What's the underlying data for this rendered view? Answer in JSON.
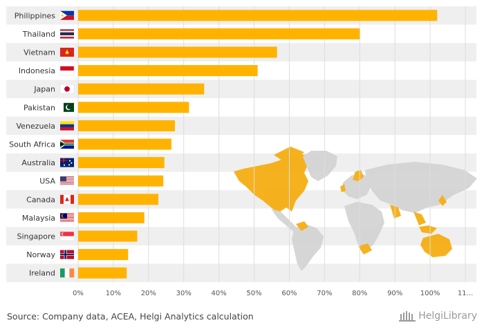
{
  "chart_data": {
    "type": "bar",
    "orientation": "horizontal",
    "categories": [
      "Philippines",
      "Thailand",
      "Vietnam",
      "Indonesia",
      "Japan",
      "Pakistan",
      "Venezuela",
      "South Africa",
      "Australia",
      "USA",
      "Canada",
      "Malaysia",
      "Singapore",
      "Norway",
      "Ireland"
    ],
    "values": [
      102,
      80,
      56.5,
      51,
      35.8,
      31.5,
      27.5,
      26.5,
      24.5,
      24.2,
      22.8,
      18.8,
      16.8,
      14.2,
      13.8
    ],
    "unit": "%",
    "xlim": [
      0,
      110
    ],
    "x_ticks": [
      "0%",
      "10%",
      "20%",
      "30%",
      "40%",
      "50%",
      "60%",
      "70%",
      "80%",
      "90%",
      "100%",
      "11..."
    ],
    "bar_color": "#FFB300",
    "band_color": "#EFEFEF",
    "grid": true,
    "flags": [
      "flag-philippines-icon",
      "flag-thailand-icon",
      "flag-vietnam-icon",
      "flag-indonesia-icon",
      "flag-japan-icon",
      "flag-pakistan-icon",
      "flag-venezuela-icon",
      "flag-south-africa-icon",
      "flag-australia-icon",
      "flag-usa-icon",
      "flag-canada-icon",
      "flag-malaysia-icon",
      "flag-singapore-icon",
      "flag-norway-icon",
      "flag-ireland-icon"
    ],
    "background_image": "world-map-icon"
  },
  "footer": {
    "source": "Source: Company data, ACEA, Helgi Analytics calculation",
    "logo": "HelgiLibrary",
    "logo_icon": "library-building-icon"
  }
}
